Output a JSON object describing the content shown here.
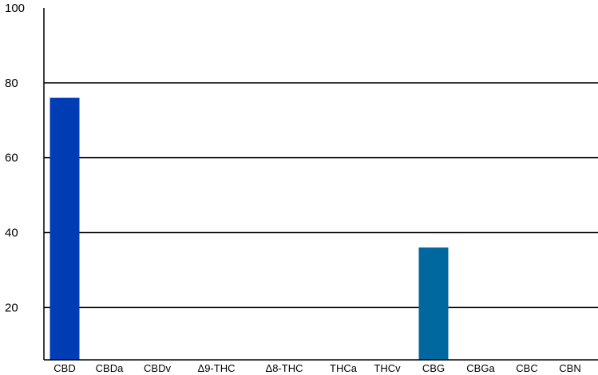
{
  "chart_data": {
    "type": "bar",
    "categories": [
      "CBD",
      "CBDa",
      "CBDv",
      "Δ9-THC",
      "Δ8-THC",
      "THCa",
      "THCv",
      "CBG",
      "CBGa",
      "CBC",
      "CBN"
    ],
    "values": [
      76,
      0,
      0,
      0,
      0,
      0,
      0,
      36,
      0,
      0,
      0
    ],
    "bar_colors": [
      "#003db5",
      "#003db5",
      "#003db5",
      "#003db5",
      "#003db5",
      "#003db5",
      "#003db5",
      "#00689e",
      "#003db5",
      "#003db5",
      "#003db5"
    ],
    "ylim": [
      6,
      100
    ],
    "yticks": [
      20,
      40,
      60,
      80,
      100
    ],
    "grid": true,
    "title": "",
    "xlabel": "",
    "ylabel": ""
  }
}
